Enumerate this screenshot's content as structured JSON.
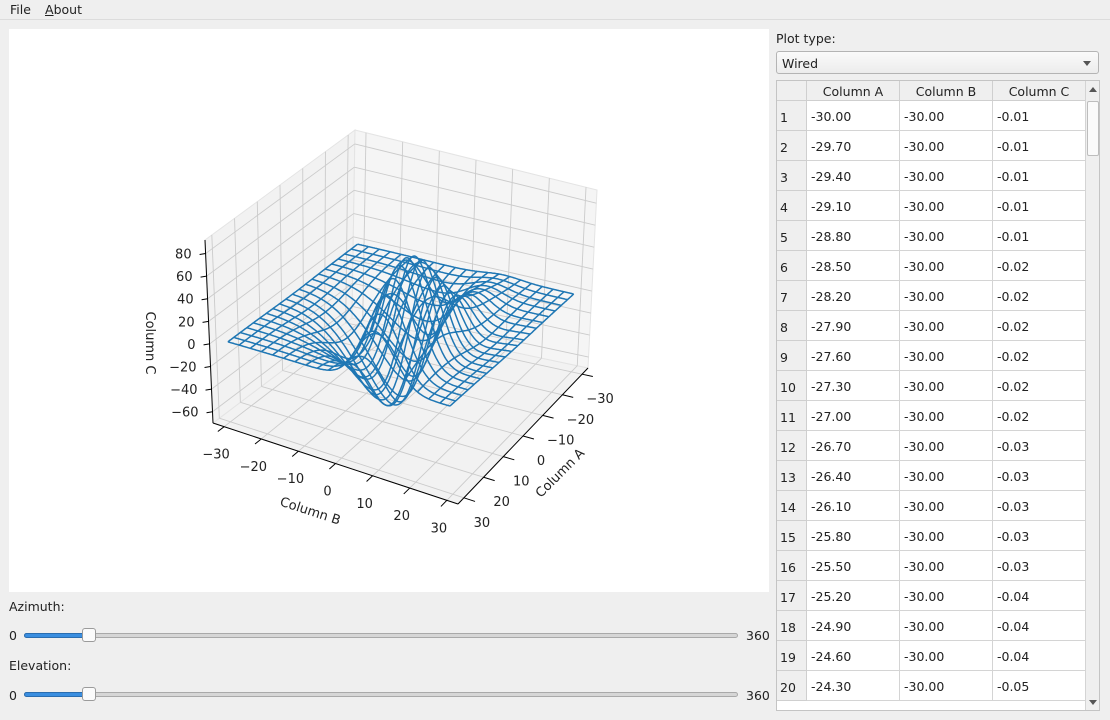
{
  "menu": {
    "file": "File",
    "about_prefix": "A",
    "about_rest": "bout"
  },
  "controls": {
    "azimuth_label": "Azimuth:",
    "azimuth": {
      "min": "0",
      "max": "360",
      "value": 30
    },
    "elevation_label": "Elevation:",
    "elevation": {
      "min": "0",
      "max": "360",
      "value": 30
    },
    "plot_type_label": "Plot type:",
    "plot_type_value": "Wired"
  },
  "table": {
    "columns": [
      "Column A",
      "Column B",
      "Column C"
    ],
    "rows": [
      [
        "1",
        "-30.00",
        "-30.00",
        "-0.01"
      ],
      [
        "2",
        "-29.70",
        "-30.00",
        "-0.01"
      ],
      [
        "3",
        "-29.40",
        "-30.00",
        "-0.01"
      ],
      [
        "4",
        "-29.10",
        "-30.00",
        "-0.01"
      ],
      [
        "5",
        "-28.80",
        "-30.00",
        "-0.01"
      ],
      [
        "6",
        "-28.50",
        "-30.00",
        "-0.02"
      ],
      [
        "7",
        "-28.20",
        "-30.00",
        "-0.02"
      ],
      [
        "8",
        "-27.90",
        "-30.00",
        "-0.02"
      ],
      [
        "9",
        "-27.60",
        "-30.00",
        "-0.02"
      ],
      [
        "10",
        "-27.30",
        "-30.00",
        "-0.02"
      ],
      [
        "11",
        "-27.00",
        "-30.00",
        "-0.02"
      ],
      [
        "12",
        "-26.70",
        "-30.00",
        "-0.03"
      ],
      [
        "13",
        "-26.40",
        "-30.00",
        "-0.03"
      ],
      [
        "14",
        "-26.10",
        "-30.00",
        "-0.03"
      ],
      [
        "15",
        "-25.80",
        "-30.00",
        "-0.03"
      ],
      [
        "16",
        "-25.50",
        "-30.00",
        "-0.03"
      ],
      [
        "17",
        "-25.20",
        "-30.00",
        "-0.04"
      ],
      [
        "18",
        "-24.90",
        "-30.00",
        "-0.04"
      ],
      [
        "19",
        "-24.60",
        "-30.00",
        "-0.04"
      ],
      [
        "20",
        "-24.30",
        "-30.00",
        "-0.05"
      ]
    ]
  },
  "chart_data": {
    "type": "wireframe-3d",
    "xlabel": "Column A",
    "ylabel": "Column B",
    "zlabel": "Column C",
    "x_ticks": [
      "−30",
      "−20",
      "−10",
      "0",
      "10",
      "20",
      "30"
    ],
    "y_ticks": [
      "−30",
      "−20",
      "−10",
      "0",
      "10",
      "20",
      "30"
    ],
    "z_ticks": [
      "−60",
      "−40",
      "−20",
      "0",
      "20",
      "40",
      "60",
      "80"
    ],
    "x_tick_values": [
      -30,
      -20,
      -10,
      0,
      10,
      20,
      30
    ],
    "y_tick_values": [
      -30,
      -20,
      -10,
      0,
      10,
      20,
      30
    ],
    "z_tick_values": [
      -60,
      -40,
      -20,
      0,
      20,
      40,
      60,
      80
    ],
    "xlim": [
      -30,
      29.7
    ],
    "ylim": [
      -30,
      29.7
    ],
    "zlim": [
      -68,
      80
    ],
    "x_step": 0.3,
    "y_step": 0.3,
    "wire_stride": 10,
    "grid": true,
    "line_color": "#1f77b4"
  }
}
